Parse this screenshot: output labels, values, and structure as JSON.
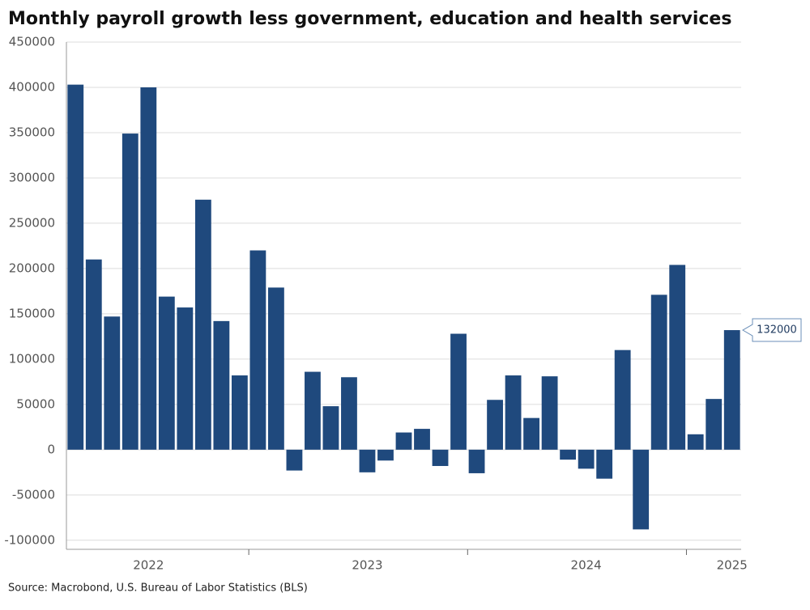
{
  "chart_data": {
    "type": "bar",
    "title": "Monthly payroll growth less government, education and health services",
    "source": "Source: Macrobond, U.S. Bureau of Labor Statistics (BLS)",
    "categories": [
      null,
      null,
      null,
      null,
      "2022",
      null,
      null,
      null,
      null,
      null,
      null,
      null,
      null,
      null,
      null,
      null,
      "2023",
      null,
      null,
      null,
      null,
      null,
      null,
      null,
      null,
      null,
      null,
      null,
      "2024",
      null,
      null,
      null,
      null,
      null,
      null,
      null,
      "2025"
    ],
    "values": [
      403000,
      210000,
      147000,
      349000,
      400000,
      169000,
      157000,
      276000,
      142000,
      82000,
      220000,
      179000,
      -23000,
      86000,
      48000,
      80000,
      -25000,
      -12000,
      19000,
      23000,
      -18000,
      128000,
      -26000,
      55000,
      82000,
      35000,
      81000,
      -11000,
      -21000,
      -32000,
      110000,
      -88000,
      171000,
      204000,
      17000,
      56000,
      132000
    ],
    "color": "#1f497d",
    "ylim": [
      -110000,
      450000
    ],
    "yticks": [
      -100000,
      -50000,
      0,
      50000,
      100000,
      150000,
      200000,
      250000,
      300000,
      350000,
      400000,
      450000
    ],
    "grid": true
  }
}
